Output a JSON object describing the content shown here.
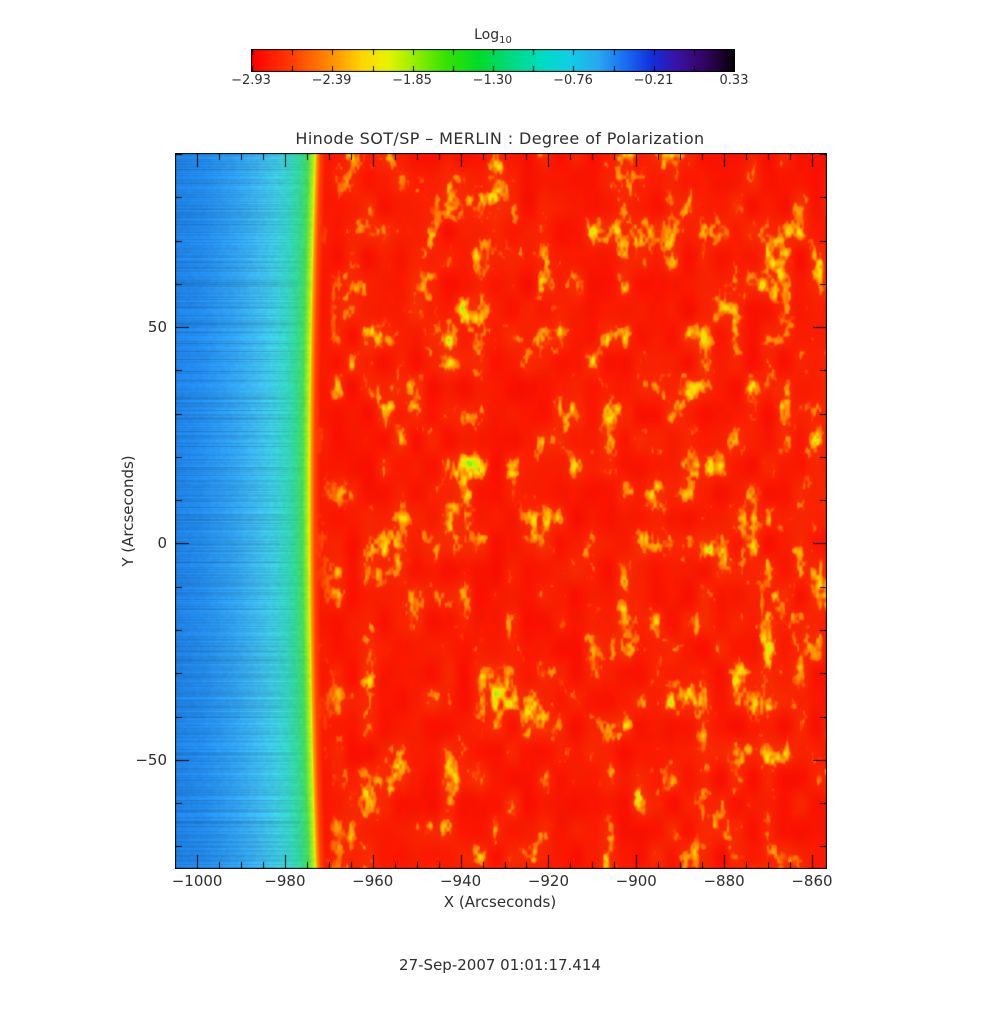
{
  "page": {
    "background": "#ffffff",
    "text_color": "#2e2e2e"
  },
  "chart_data": {
    "type": "heatmap",
    "title": "Hinode SOT/SP – MERLIN : Degree of Polarization",
    "xlabel": "X (Arcseconds)",
    "ylabel": "Y (Arcseconds)",
    "annotation_timestamp": "27-Sep-2007 01:01:17.414",
    "xlim": [
      -1004.8,
      -856.8
    ],
    "ylim": [
      -75,
      90
    ],
    "grid": false,
    "x_major_ticks": [
      -1000,
      -980,
      -960,
      -940,
      -920,
      -900,
      -880,
      -860
    ],
    "x_tick_labels": [
      "−1000",
      "−980",
      "−960",
      "−940",
      "−920",
      "−900",
      "−880",
      "−860"
    ],
    "x_minor_step": 5,
    "y_major_ticks": [
      50,
      0,
      -50
    ],
    "y_tick_labels": [
      "50",
      "0",
      "−50"
    ],
    "y_minor_step": 10,
    "colorbar": {
      "title": "Log",
      "title_subscript": "10",
      "orientation": "horizontal",
      "position": "top",
      "range": [
        -2.93,
        0.33
      ],
      "ticks": [
        -2.93,
        -2.39,
        -1.85,
        -1.3,
        -0.76,
        -0.21,
        0.33
      ],
      "tick_labels": [
        "−2.93",
        "−2.39",
        "−1.85",
        "−1.30",
        "−0.76",
        "−0.21",
        "0.33"
      ],
      "colormap": "rainbow: red → orange → yellow → green → cyan → blue → violet → black"
    },
    "scene": {
      "kind": "solar-limb degree-of-polarization map",
      "offlimb_side": "left (blue/cyan, low polarization signal with horizontal scan stripes)",
      "disk_side": "right (red with yellow/green magnetic mottling)",
      "limb_x_at_center_y_arcsec": -974.2,
      "limb_center_y_arcsec": 8,
      "limb_curvature_radius_arcsec": 2500
    },
    "colors": {
      "frame": "#000000",
      "colorbar_stops": [
        [
          0,
          "#ff0000"
        ],
        [
          0.08,
          "#ff3c00"
        ],
        [
          0.16,
          "#ff8c00"
        ],
        [
          0.23,
          "#ffd800"
        ],
        [
          0.28,
          "#e8f400"
        ],
        [
          0.33,
          "#a0f000"
        ],
        [
          0.4,
          "#38e400"
        ],
        [
          0.47,
          "#00dc28"
        ],
        [
          0.53,
          "#00da78"
        ],
        [
          0.6,
          "#00dcc0"
        ],
        [
          0.66,
          "#10cfe8"
        ],
        [
          0.72,
          "#28a8f0"
        ],
        [
          0.78,
          "#1868f4"
        ],
        [
          0.83,
          "#1030dc"
        ],
        [
          0.88,
          "#3a14a8"
        ],
        [
          0.93,
          "#360670"
        ],
        [
          0.97,
          "#200238"
        ],
        [
          1,
          "#060008"
        ]
      ],
      "sky_stops": [
        [
          0,
          "#e8fa00"
        ],
        [
          0.8,
          "#a0ee1e"
        ],
        [
          1.8,
          "#46dc5a"
        ],
        [
          3.5,
          "#32d896"
        ],
        [
          6,
          "#37d2c8"
        ],
        [
          9,
          "#3ec8e4"
        ],
        [
          13,
          "#3cb4ee"
        ],
        [
          18,
          "#30a0f0"
        ],
        [
          25,
          "#248cec"
        ],
        [
          33,
          "#1e80e4"
        ],
        [
          46,
          "#1a76da"
        ]
      ],
      "disk_near_limb_stops": [
        [
          0,
          "#e8fa00"
        ],
        [
          0.35,
          "#ffa000"
        ],
        [
          1.2,
          "#ff4600"
        ],
        [
          2.5,
          "#fa1900"
        ]
      ],
      "disk_hot_stops": [
        [
          0,
          "#ff3c00"
        ],
        [
          0.3,
          "#ff8c00"
        ],
        [
          0.55,
          "#ffdc00"
        ],
        [
          0.75,
          "#bef50a"
        ],
        [
          1,
          "#00e650"
        ]
      ]
    }
  }
}
